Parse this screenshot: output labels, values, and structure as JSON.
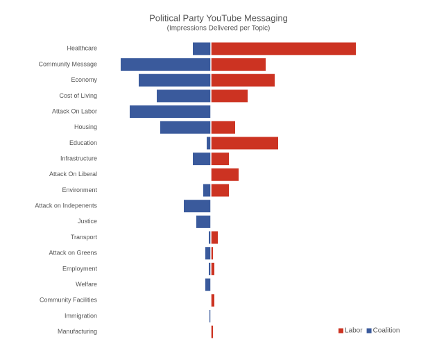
{
  "chart_data": {
    "type": "diverging-bar",
    "title": "Political Party YouTube Messaging",
    "subtitle": "(Impressions Delivered per Topic)",
    "categories": [
      "Healthcare",
      "Community Message",
      "Economy",
      "Cost of Living",
      "Attack On Labor",
      "Housing",
      "Education",
      "Infrastructure",
      "Attack On Liberal",
      "Environment",
      "Attack on Indepenents",
      "Justice",
      "Transport",
      "Attack on Greens",
      "Employment",
      "Welfare",
      "Community Facilities",
      "Immigration",
      "Manufacturing"
    ],
    "series": [
      {
        "name": "Labor",
        "color": "#cc3322",
        "values": [
          209,
          79,
          92,
          53,
          0,
          35,
          97,
          26,
          40,
          26,
          0,
          0,
          10,
          3,
          5,
          0,
          5,
          0,
          3
        ]
      },
      {
        "name": "Coalition",
        "color": "#3a5a9c",
        "values": [
          -26,
          -130,
          -104,
          -78,
          -117,
          -73,
          -6,
          -26,
          0,
          -11,
          -39,
          -21,
          -3,
          -8,
          -3,
          -8,
          0,
          -2,
          0
        ]
      }
    ],
    "xlim": [
      -160,
      260
    ],
    "legend": "lower right"
  }
}
